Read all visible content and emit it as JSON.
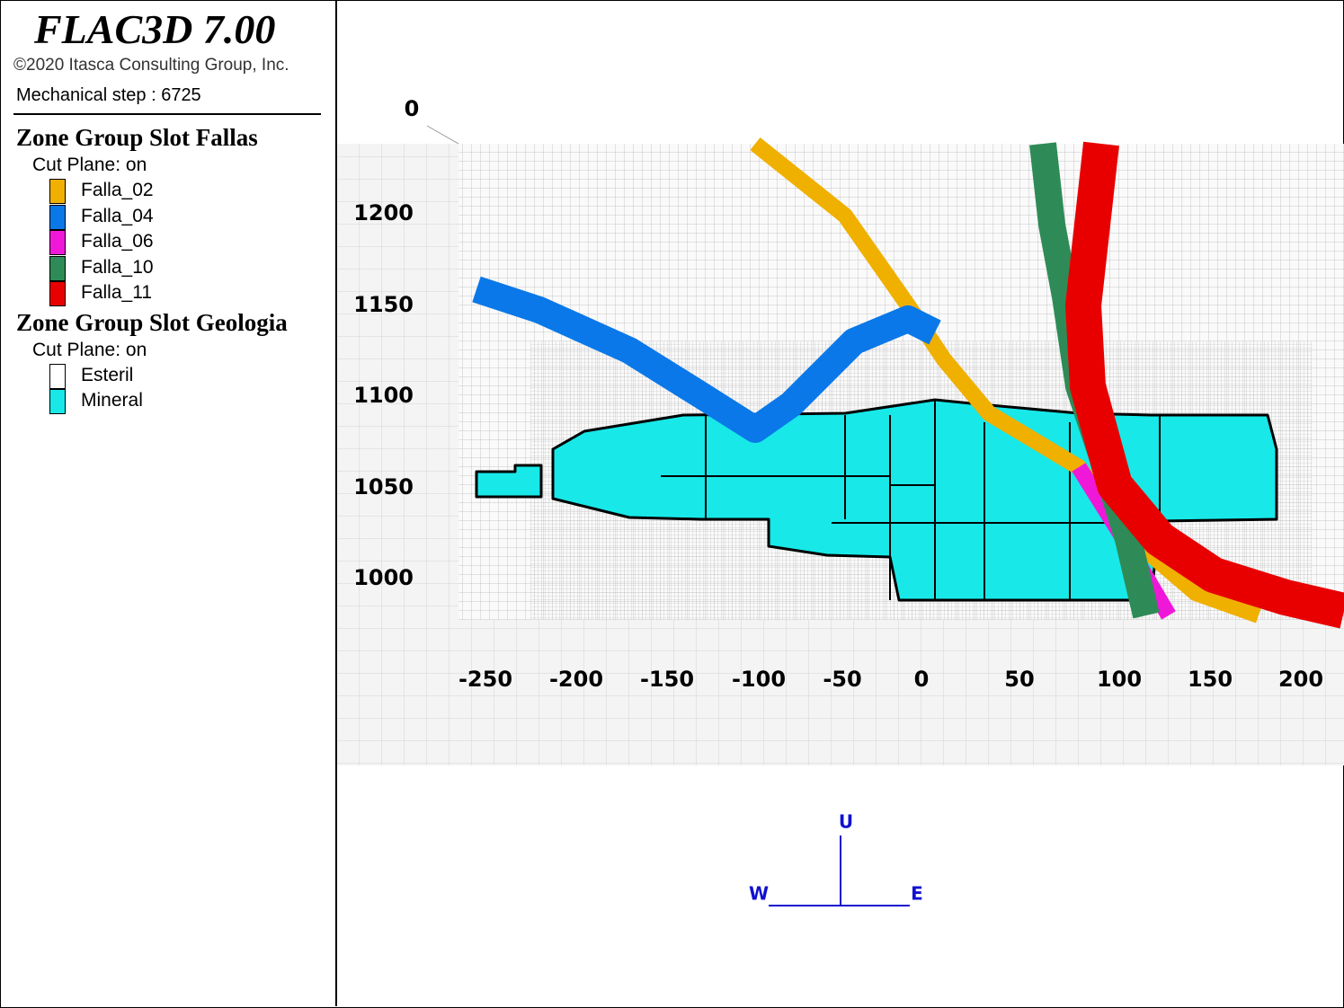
{
  "header": {
    "title": "FLAC3D 7.00",
    "copyright": "©2020 Itasca Consulting Group, Inc.",
    "step": "Mechanical step : 6725"
  },
  "legend": [
    {
      "title": "Zone Group Slot Fallas",
      "subtitle": "Cut Plane: on",
      "items": [
        {
          "label": "Falla_02",
          "color": "#f0b000"
        },
        {
          "label": "Falla_04",
          "color": "#0a78e8"
        },
        {
          "label": "Falla_06",
          "color": "#f018d8"
        },
        {
          "label": "Falla_10",
          "color": "#2e8b57"
        },
        {
          "label": "Falla_11",
          "color": "#e80000"
        }
      ]
    },
    {
      "title": "Zone Group Slot Geologia",
      "subtitle": "Cut Plane: on",
      "items": [
        {
          "label": "Esteril",
          "color": "#ffffff"
        },
        {
          "label": "Mineral",
          "color": "#18e8e8"
        }
      ]
    }
  ],
  "axes": {
    "corner": "0",
    "x_labels": [
      "-250",
      "-200",
      "-150",
      "-100",
      "-50",
      "0",
      "50",
      "100",
      "150",
      "200"
    ],
    "y_labels": [
      "1200",
      "1150",
      "1100",
      "1050",
      "1000"
    ]
  },
  "compass": {
    "up": "U",
    "west": "W",
    "east": "E"
  }
}
